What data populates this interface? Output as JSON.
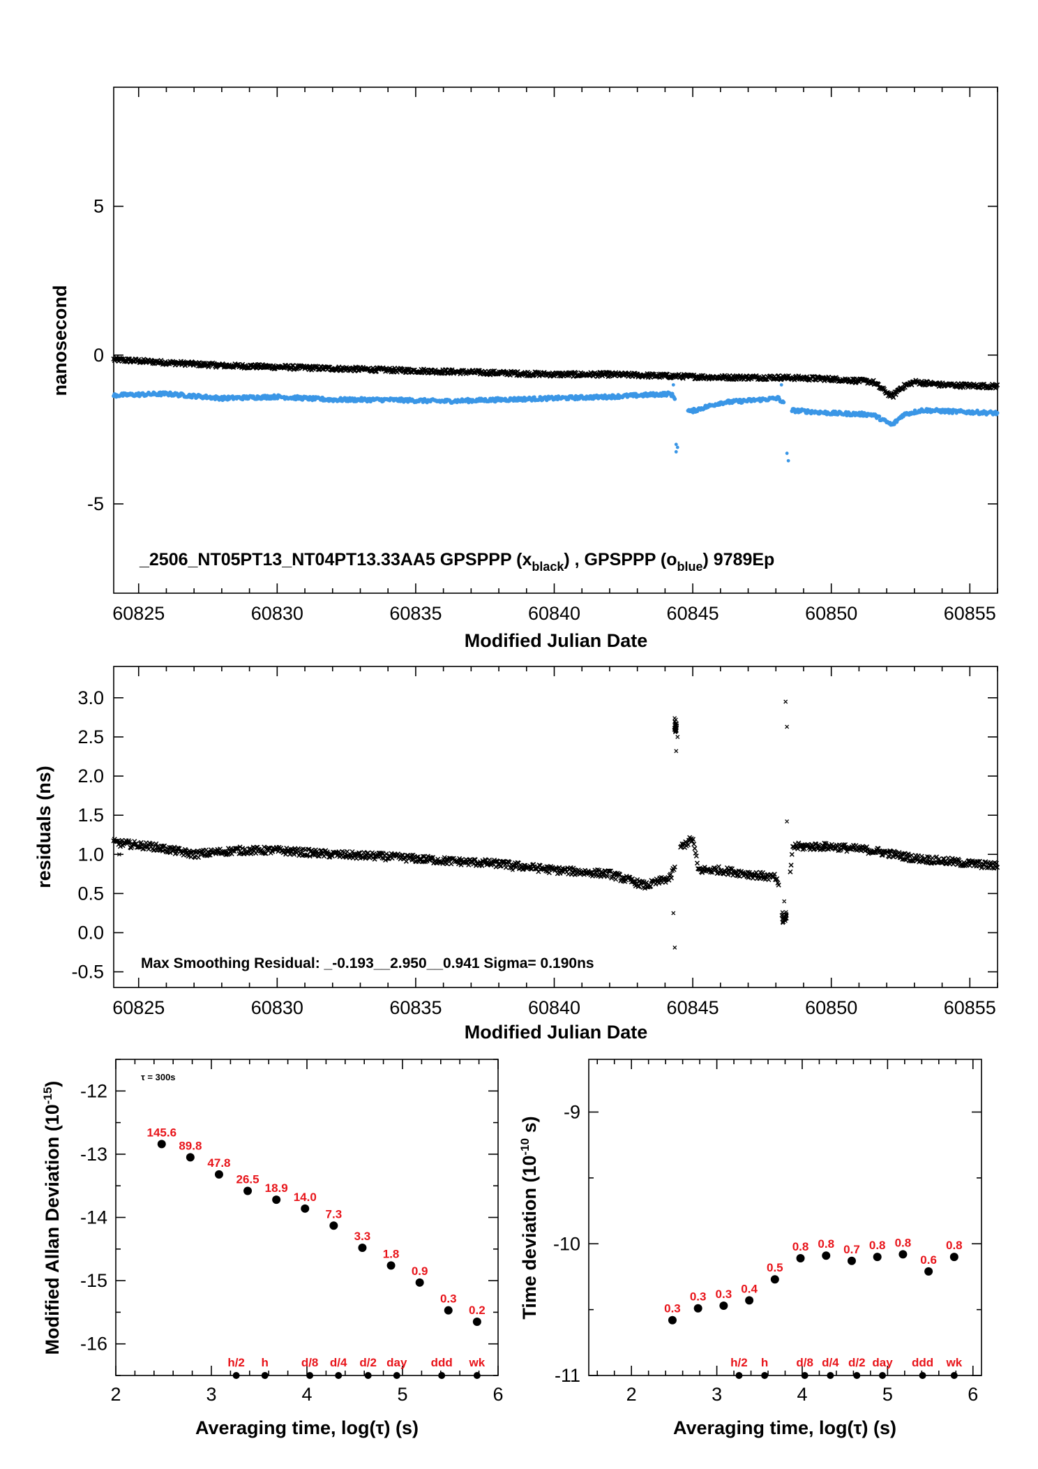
{
  "chart_data": [
    {
      "type": "scatter",
      "id": "phase",
      "ylabel": "nanosecond",
      "xlabel": "Modified Julian Date",
      "xlim": [
        60824.1,
        60856.0
      ],
      "ylim": [
        -8,
        9
      ],
      "yticks": [
        "-5",
        "0",
        "5"
      ],
      "xticks": [
        "60825",
        "60830",
        "60835",
        "60840",
        "60845",
        "60850",
        "60855"
      ],
      "annotation": {
        "main": "_2506_NT05PT13_NT04PT13.33AA5     GPSPPP (x",
        "sub1": "black",
        "mid": ") ,  GPSPPP (o",
        "sub2": "blue",
        "tail": ")  9789Ep"
      },
      "colors": {
        "black": "#000000",
        "blue": "#3a96e6"
      },
      "series": [
        {
          "marker": "x",
          "color": "#000000",
          "x": [
            60824.1,
            60826,
            60828,
            60830,
            60832,
            60834,
            60836,
            60838,
            60840,
            60842,
            60844,
            60846,
            60848,
            60850,
            60851.5,
            60852.2,
            60852.5,
            60853,
            60854,
            60856
          ],
          "y": [
            -0.15,
            -0.25,
            -0.35,
            -0.4,
            -0.45,
            -0.5,
            -0.55,
            -0.6,
            -0.65,
            -0.65,
            -0.7,
            -0.75,
            -0.75,
            -0.8,
            -0.9,
            -1.4,
            -1.1,
            -0.9,
            -1.0,
            -1.05
          ]
        },
        {
          "marker": "o",
          "color": "#3a96e6",
          "x": [
            60824.1,
            60826,
            60828,
            60830,
            60832,
            60834,
            60836,
            60838,
            60840,
            60842,
            60844.2,
            60844.9,
            60846,
            60848.1,
            60848.5,
            60850,
            60851.5,
            60852.2,
            60852.6,
            60853.3,
            60854.5,
            60856
          ],
          "y": [
            -1.35,
            -1.3,
            -1.45,
            -1.4,
            -1.5,
            -1.5,
            -1.55,
            -1.5,
            -1.45,
            -1.4,
            -1.3,
            -1.9,
            -1.6,
            -1.45,
            -1.85,
            -1.95,
            -2.0,
            -2.35,
            -2.0,
            -1.85,
            -1.9,
            -1.95
          ]
        }
      ],
      "outliers_blue": {
        "x": [
          60844.4,
          60844.4,
          60844.45,
          60848.4,
          60848.45,
          60844.3,
          60848.2
        ],
        "y": [
          -3.0,
          -3.25,
          -3.1,
          -3.3,
          -3.55,
          -1.0,
          -1.0
        ]
      }
    },
    {
      "type": "scatter",
      "id": "residuals",
      "ylabel": "residuals (ns)",
      "xlabel": "Modified Julian Date",
      "xlim": [
        60824.1,
        60856.0
      ],
      "ylim": [
        -0.7,
        3.4
      ],
      "yticks": [
        "-0.5",
        "0.0",
        "0.5",
        "1.0",
        "1.5",
        "2.0",
        "2.5",
        "3.0"
      ],
      "xticks": [
        "60825",
        "60830",
        "60835",
        "60840",
        "60845",
        "60850",
        "60855"
      ],
      "annotation": "Max Smoothing Residual: _-0.193__2.950__0.941  Sigma= 0.190ns",
      "series": [
        {
          "marker": "x",
          "color": "#000000",
          "x": [
            60824.1,
            60825.5,
            60827,
            60828.5,
            60830,
            60832,
            60834,
            60836,
            60838,
            60840,
            60842,
            60843.3,
            60844.2,
            60844.6,
            60845.0,
            60845.2,
            60846,
            60847,
            60848.0,
            60848.4,
            60848.6,
            60850,
            60851.5,
            60853,
            60854.5,
            60856
          ],
          "y": [
            1.15,
            1.1,
            1.0,
            1.05,
            1.05,
            1.0,
            0.97,
            0.92,
            0.88,
            0.8,
            0.75,
            0.6,
            0.7,
            1.1,
            1.2,
            0.8,
            0.8,
            0.75,
            0.7,
            0.2,
            1.1,
            1.1,
            1.05,
            0.95,
            0.9,
            0.85
          ]
        }
      ],
      "outliers": {
        "x": [
          60824.3,
          60844.35,
          60844.4,
          60844.45,
          60844.4,
          60844.3,
          60844.35,
          60848.35,
          60848.4,
          60848.4,
          60848.3,
          60833,
          60838.5,
          60847
        ],
        "y": [
          1.0,
          2.7,
          2.6,
          2.5,
          2.32,
          0.25,
          -0.19,
          2.95,
          2.63,
          1.42,
          0.4,
          0.95,
          0.8,
          0.7
        ]
      }
    },
    {
      "type": "scatter",
      "id": "mdev",
      "ylabel": "Modified Allan Deviation (10",
      "ylabel_sup": "-15",
      "ylabel_tail": ")",
      "xlabel": "Averaging time, log(τ) (s)",
      "xlim": [
        2,
        6
      ],
      "ylim": [
        -16.5,
        -11.5
      ],
      "yticks": [
        "-12",
        "-13",
        "-14",
        "-15",
        "-16"
      ],
      "xticks": [
        "2",
        "3",
        "4",
        "5",
        "6"
      ],
      "note": "τ = 300s",
      "x": [
        2.48,
        2.78,
        3.08,
        3.38,
        3.68,
        3.98,
        4.28,
        4.58,
        4.88,
        5.18,
        5.48,
        5.78
      ],
      "y": [
        -12.84,
        -13.05,
        -13.32,
        -13.58,
        -13.72,
        -13.86,
        -14.13,
        -14.48,
        -14.76,
        -15.03,
        -15.47,
        -15.65
      ],
      "point_labels": [
        "145.6",
        "89.8",
        "47.8",
        "26.5",
        "18.9",
        "14.0",
        "7.3",
        "3.3",
        "1.8",
        "0.9",
        "0.3",
        "0.2"
      ],
      "markers": {
        "labels": [
          "h/2",
          "h",
          "d/8",
          "d/4",
          "d/2",
          "day",
          "ddd",
          "wk"
        ],
        "x": [
          3.26,
          3.56,
          4.03,
          4.33,
          4.64,
          4.94,
          5.41,
          5.78
        ]
      }
    },
    {
      "type": "scatter",
      "id": "tdev",
      "ylabel": "Time deviation (10",
      "ylabel_sup": "-10",
      "ylabel_tail": " s)",
      "xlabel": "Averaging time, log(τ) (s)",
      "xlim": [
        1.5,
        6.1
      ],
      "ylim": [
        -11,
        -8.6
      ],
      "yticks": [
        "-9",
        "-10",
        "-11"
      ],
      "xticks": [
        "2",
        "3",
        "4",
        "5",
        "6"
      ],
      "x": [
        2.48,
        2.78,
        3.08,
        3.38,
        3.68,
        3.98,
        4.28,
        4.58,
        4.88,
        5.18,
        5.48,
        5.78
      ],
      "y": [
        -10.58,
        -10.49,
        -10.47,
        -10.43,
        -10.27,
        -10.11,
        -10.09,
        -10.13,
        -10.1,
        -10.08,
        -10.21,
        -10.1
      ],
      "point_labels": [
        "0.3",
        "0.3",
        "0.3",
        "0.4",
        "0.5",
        "0.8",
        "0.8",
        "0.7",
        "0.8",
        "0.8",
        "0.6",
        "0.8"
      ],
      "markers": {
        "labels": [
          "h/2",
          "h",
          "d/8",
          "d/4",
          "d/2",
          "day",
          "ddd",
          "wk"
        ],
        "x": [
          3.26,
          3.56,
          4.03,
          4.33,
          4.64,
          4.94,
          5.41,
          5.78
        ]
      }
    }
  ]
}
